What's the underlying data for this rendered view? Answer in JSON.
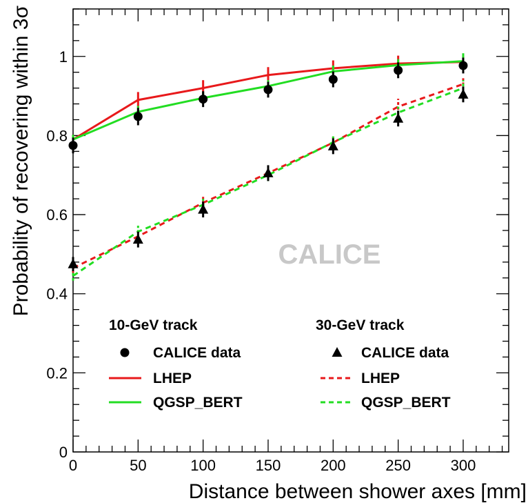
{
  "chart_data": {
    "type": "line",
    "xlabel": "Distance between shower axes [mm]",
    "ylabel": "Probability of recovering within 3σ",
    "xlim": [
      0,
      335
    ],
    "ylim": [
      0,
      1.12
    ],
    "xticks": [
      0,
      50,
      100,
      150,
      200,
      250,
      300
    ],
    "yticks": [
      0,
      0.2,
      0.4,
      0.6,
      0.8,
      1
    ],
    "xtick_labels": [
      "0",
      "50",
      "100",
      "150",
      "200",
      "250",
      "300"
    ],
    "ytick_labels": [
      "0",
      "0.2",
      "0.4",
      "0.6",
      "0.8",
      "1"
    ],
    "watermark": "CALICE",
    "x": [
      0,
      50,
      100,
      150,
      200,
      250,
      300
    ],
    "series": [
      {
        "name": "CALICE data",
        "group": "10-GeV track",
        "style": "marker-circle",
        "color": "#000000",
        "values": [
          0.775,
          0.848,
          0.892,
          0.916,
          0.942,
          0.965,
          0.977
        ],
        "err": [
          0.02,
          0.022,
          0.02,
          0.02,
          0.02,
          0.02,
          0.02
        ]
      },
      {
        "name": "LHEP",
        "group": "10-GeV track",
        "style": "solid",
        "color": "#e8191b",
        "values": [
          0.79,
          0.89,
          0.92,
          0.953,
          0.97,
          0.982,
          0.986
        ],
        "err": [
          0.012,
          0.02,
          0.02,
          0.02,
          0.02,
          0.02,
          0.015
        ]
      },
      {
        "name": "QGSP_BERT",
        "group": "10-GeV track",
        "style": "solid",
        "color": "#22dd22",
        "values": [
          0.79,
          0.86,
          0.895,
          0.925,
          0.962,
          0.978,
          0.988
        ],
        "err": [
          0.012,
          0.015,
          0.015,
          0.015,
          0.015,
          0.015,
          0.02
        ]
      },
      {
        "name": "CALICE data",
        "group": "30-GeV track",
        "style": "marker-triangle",
        "color": "#000000",
        "values": [
          0.475,
          0.537,
          0.613,
          0.705,
          0.773,
          0.843,
          0.904
        ],
        "err": [
          0.018,
          0.02,
          0.02,
          0.02,
          0.02,
          0.02,
          0.02
        ]
      },
      {
        "name": "LHEP",
        "group": "30-GeV track",
        "style": "dashed",
        "color": "#e8191b",
        "values": [
          0.465,
          0.545,
          0.63,
          0.705,
          0.782,
          0.873,
          0.93
        ],
        "err": [
          0.012,
          0.015,
          0.015,
          0.015,
          0.015,
          0.02,
          0.015
        ]
      },
      {
        "name": "QGSP_BERT",
        "group": "30-GeV track",
        "style": "dashed",
        "color": "#22dd22",
        "values": [
          0.445,
          0.557,
          0.625,
          0.7,
          0.783,
          0.858,
          0.92
        ],
        "err": [
          0.012,
          0.015,
          0.015,
          0.015,
          0.015,
          0.015,
          0.02
        ]
      }
    ],
    "legend": {
      "groups": [
        {
          "title": "10-GeV track",
          "entries": [
            {
              "label": "CALICE data",
              "style": "marker-circle",
              "color": "#000000"
            },
            {
              "label": "LHEP",
              "style": "solid",
              "color": "#e8191b"
            },
            {
              "label": "QGSP_BERT",
              "style": "solid",
              "color": "#22dd22"
            }
          ]
        },
        {
          "title": "30-GeV track",
          "entries": [
            {
              "label": "CALICE data",
              "style": "marker-triangle",
              "color": "#000000"
            },
            {
              "label": "LHEP",
              "style": "dashed",
              "color": "#e8191b"
            },
            {
              "label": "QGSP_BERT",
              "style": "dashed",
              "color": "#22dd22"
            }
          ]
        }
      ]
    },
    "grid": false,
    "legend_position": "bottom"
  }
}
